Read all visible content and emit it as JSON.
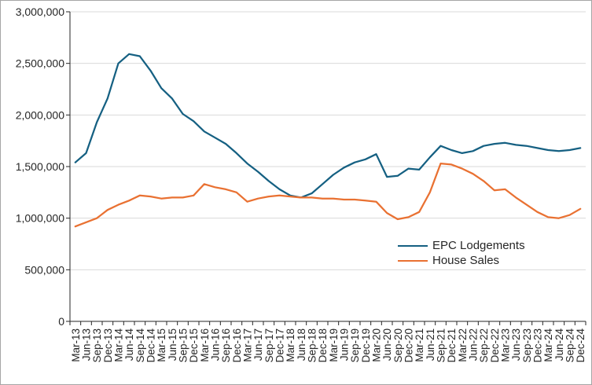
{
  "chart_data": {
    "type": "line",
    "title": "",
    "xlabel": "",
    "ylabel": "",
    "grid": true,
    "legend_position": "inside-right-lower-middle",
    "ylim": [
      0,
      3000000
    ],
    "y_tick_step": 500000,
    "y_tick_labels": [
      "0",
      "500,000",
      "1,000,000",
      "1,500,000",
      "2,000,000",
      "2,500,000",
      "3,000,000"
    ],
    "categories": [
      "Mar-13",
      "Jun-13",
      "Sep-13",
      "Dec-13",
      "Mar-14",
      "Jun-14",
      "Sep-14",
      "Dec-14",
      "Mar-15",
      "Jun-15",
      "Sep-15",
      "Dec-15",
      "Mar-16",
      "Jun-16",
      "Sep-16",
      "Dec-16",
      "Mar-17",
      "Jun-17",
      "Sep-17",
      "Dec-17",
      "Mar-18",
      "Jun-18",
      "Sep-18",
      "Dec-18",
      "Mar-19",
      "Jun-19",
      "Sep-19",
      "Dec-19",
      "Mar-20",
      "Jun-20",
      "Sep-20",
      "Dec-20",
      "Mar-21",
      "Jun-21",
      "Sep-21",
      "Dec-21",
      "Mar-22",
      "Jun-22",
      "Sep-22",
      "Dec-22",
      "Mar-23",
      "Jun-23",
      "Sep-23",
      "Dec-23",
      "Mar-24",
      "Jun-24",
      "Sep-24",
      "Dec-24"
    ],
    "series": [
      {
        "name": "EPC Lodgements",
        "color": "#156082",
        "values": [
          1540000,
          1630000,
          1930000,
          2160000,
          2500000,
          2590000,
          2570000,
          2430000,
          2260000,
          2160000,
          2010000,
          1940000,
          1840000,
          1780000,
          1720000,
          1630000,
          1530000,
          1450000,
          1360000,
          1280000,
          1220000,
          1200000,
          1240000,
          1330000,
          1420000,
          1490000,
          1540000,
          1570000,
          1620000,
          1400000,
          1410000,
          1480000,
          1470000,
          1590000,
          1700000,
          1660000,
          1630000,
          1650000,
          1700000,
          1720000,
          1730000,
          1710000,
          1700000,
          1680000,
          1660000,
          1650000,
          1660000,
          1680000
        ]
      },
      {
        "name": "House Sales",
        "color": "#E97132",
        "values": [
          920000,
          960000,
          1000000,
          1080000,
          1130000,
          1170000,
          1220000,
          1210000,
          1190000,
          1200000,
          1200000,
          1220000,
          1330000,
          1300000,
          1280000,
          1250000,
          1160000,
          1190000,
          1210000,
          1220000,
          1210000,
          1200000,
          1200000,
          1190000,
          1190000,
          1180000,
          1180000,
          1170000,
          1160000,
          1050000,
          990000,
          1010000,
          1060000,
          1250000,
          1530000,
          1520000,
          1480000,
          1430000,
          1360000,
          1270000,
          1280000,
          1200000,
          1130000,
          1060000,
          1010000,
          1000000,
          1030000,
          1090000
        ]
      }
    ],
    "colors": {
      "gridline": "#d9d9d9",
      "axis": "#262626",
      "text": "#262626",
      "frame_border": "#a6a6a6",
      "background": "#ffffff"
    }
  },
  "legend": {
    "items": [
      {
        "label": "EPC Lodgements"
      },
      {
        "label": "House Sales"
      }
    ]
  }
}
